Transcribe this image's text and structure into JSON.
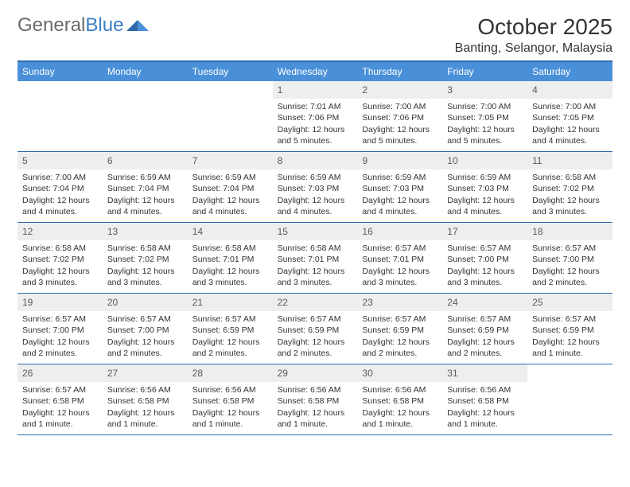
{
  "header": {
    "logo_text_1": "General",
    "logo_text_2": "Blue",
    "month_title": "October 2025",
    "location": "Banting, Selangor, Malaysia"
  },
  "colors": {
    "header_bar": "#4a90d9",
    "rule": "#2d6aa8",
    "daynum_bg": "#eeeeef",
    "text": "#333333",
    "logo_gray": "#6a6a6a",
    "logo_blue": "#3b7fc4"
  },
  "weekdays": [
    "Sunday",
    "Monday",
    "Tuesday",
    "Wednesday",
    "Thursday",
    "Friday",
    "Saturday"
  ],
  "weeks": [
    [
      {
        "day": "",
        "sunrise": "",
        "sunset": "",
        "daylight": ""
      },
      {
        "day": "",
        "sunrise": "",
        "sunset": "",
        "daylight": ""
      },
      {
        "day": "",
        "sunrise": "",
        "sunset": "",
        "daylight": ""
      },
      {
        "day": "1",
        "sunrise": "Sunrise: 7:01 AM",
        "sunset": "Sunset: 7:06 PM",
        "daylight": "Daylight: 12 hours and 5 minutes."
      },
      {
        "day": "2",
        "sunrise": "Sunrise: 7:00 AM",
        "sunset": "Sunset: 7:06 PM",
        "daylight": "Daylight: 12 hours and 5 minutes."
      },
      {
        "day": "3",
        "sunrise": "Sunrise: 7:00 AM",
        "sunset": "Sunset: 7:05 PM",
        "daylight": "Daylight: 12 hours and 5 minutes."
      },
      {
        "day": "4",
        "sunrise": "Sunrise: 7:00 AM",
        "sunset": "Sunset: 7:05 PM",
        "daylight": "Daylight: 12 hours and 4 minutes."
      }
    ],
    [
      {
        "day": "5",
        "sunrise": "Sunrise: 7:00 AM",
        "sunset": "Sunset: 7:04 PM",
        "daylight": "Daylight: 12 hours and 4 minutes."
      },
      {
        "day": "6",
        "sunrise": "Sunrise: 6:59 AM",
        "sunset": "Sunset: 7:04 PM",
        "daylight": "Daylight: 12 hours and 4 minutes."
      },
      {
        "day": "7",
        "sunrise": "Sunrise: 6:59 AM",
        "sunset": "Sunset: 7:04 PM",
        "daylight": "Daylight: 12 hours and 4 minutes."
      },
      {
        "day": "8",
        "sunrise": "Sunrise: 6:59 AM",
        "sunset": "Sunset: 7:03 PM",
        "daylight": "Daylight: 12 hours and 4 minutes."
      },
      {
        "day": "9",
        "sunrise": "Sunrise: 6:59 AM",
        "sunset": "Sunset: 7:03 PM",
        "daylight": "Daylight: 12 hours and 4 minutes."
      },
      {
        "day": "10",
        "sunrise": "Sunrise: 6:59 AM",
        "sunset": "Sunset: 7:03 PM",
        "daylight": "Daylight: 12 hours and 4 minutes."
      },
      {
        "day": "11",
        "sunrise": "Sunrise: 6:58 AM",
        "sunset": "Sunset: 7:02 PM",
        "daylight": "Daylight: 12 hours and 3 minutes."
      }
    ],
    [
      {
        "day": "12",
        "sunrise": "Sunrise: 6:58 AM",
        "sunset": "Sunset: 7:02 PM",
        "daylight": "Daylight: 12 hours and 3 minutes."
      },
      {
        "day": "13",
        "sunrise": "Sunrise: 6:58 AM",
        "sunset": "Sunset: 7:02 PM",
        "daylight": "Daylight: 12 hours and 3 minutes."
      },
      {
        "day": "14",
        "sunrise": "Sunrise: 6:58 AM",
        "sunset": "Sunset: 7:01 PM",
        "daylight": "Daylight: 12 hours and 3 minutes."
      },
      {
        "day": "15",
        "sunrise": "Sunrise: 6:58 AM",
        "sunset": "Sunset: 7:01 PM",
        "daylight": "Daylight: 12 hours and 3 minutes."
      },
      {
        "day": "16",
        "sunrise": "Sunrise: 6:57 AM",
        "sunset": "Sunset: 7:01 PM",
        "daylight": "Daylight: 12 hours and 3 minutes."
      },
      {
        "day": "17",
        "sunrise": "Sunrise: 6:57 AM",
        "sunset": "Sunset: 7:00 PM",
        "daylight": "Daylight: 12 hours and 3 minutes."
      },
      {
        "day": "18",
        "sunrise": "Sunrise: 6:57 AM",
        "sunset": "Sunset: 7:00 PM",
        "daylight": "Daylight: 12 hours and 2 minutes."
      }
    ],
    [
      {
        "day": "19",
        "sunrise": "Sunrise: 6:57 AM",
        "sunset": "Sunset: 7:00 PM",
        "daylight": "Daylight: 12 hours and 2 minutes."
      },
      {
        "day": "20",
        "sunrise": "Sunrise: 6:57 AM",
        "sunset": "Sunset: 7:00 PM",
        "daylight": "Daylight: 12 hours and 2 minutes."
      },
      {
        "day": "21",
        "sunrise": "Sunrise: 6:57 AM",
        "sunset": "Sunset: 6:59 PM",
        "daylight": "Daylight: 12 hours and 2 minutes."
      },
      {
        "day": "22",
        "sunrise": "Sunrise: 6:57 AM",
        "sunset": "Sunset: 6:59 PM",
        "daylight": "Daylight: 12 hours and 2 minutes."
      },
      {
        "day": "23",
        "sunrise": "Sunrise: 6:57 AM",
        "sunset": "Sunset: 6:59 PM",
        "daylight": "Daylight: 12 hours and 2 minutes."
      },
      {
        "day": "24",
        "sunrise": "Sunrise: 6:57 AM",
        "sunset": "Sunset: 6:59 PM",
        "daylight": "Daylight: 12 hours and 2 minutes."
      },
      {
        "day": "25",
        "sunrise": "Sunrise: 6:57 AM",
        "sunset": "Sunset: 6:59 PM",
        "daylight": "Daylight: 12 hours and 1 minute."
      }
    ],
    [
      {
        "day": "26",
        "sunrise": "Sunrise: 6:57 AM",
        "sunset": "Sunset: 6:58 PM",
        "daylight": "Daylight: 12 hours and 1 minute."
      },
      {
        "day": "27",
        "sunrise": "Sunrise: 6:56 AM",
        "sunset": "Sunset: 6:58 PM",
        "daylight": "Daylight: 12 hours and 1 minute."
      },
      {
        "day": "28",
        "sunrise": "Sunrise: 6:56 AM",
        "sunset": "Sunset: 6:58 PM",
        "daylight": "Daylight: 12 hours and 1 minute."
      },
      {
        "day": "29",
        "sunrise": "Sunrise: 6:56 AM",
        "sunset": "Sunset: 6:58 PM",
        "daylight": "Daylight: 12 hours and 1 minute."
      },
      {
        "day": "30",
        "sunrise": "Sunrise: 6:56 AM",
        "sunset": "Sunset: 6:58 PM",
        "daylight": "Daylight: 12 hours and 1 minute."
      },
      {
        "day": "31",
        "sunrise": "Sunrise: 6:56 AM",
        "sunset": "Sunset: 6:58 PM",
        "daylight": "Daylight: 12 hours and 1 minute."
      },
      {
        "day": "",
        "sunrise": "",
        "sunset": "",
        "daylight": ""
      }
    ]
  ]
}
